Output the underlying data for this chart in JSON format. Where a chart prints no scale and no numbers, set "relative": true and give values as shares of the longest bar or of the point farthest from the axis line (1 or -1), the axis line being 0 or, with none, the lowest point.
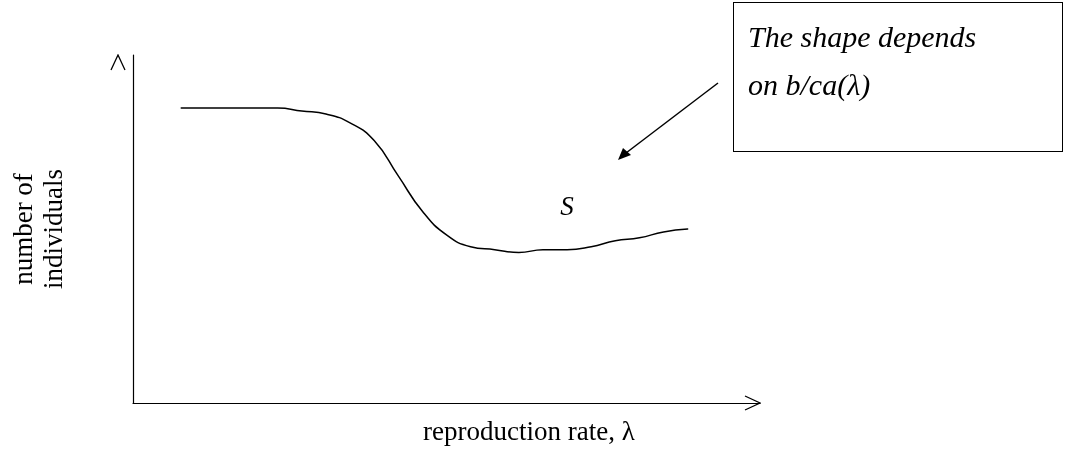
{
  "chart_data": {
    "type": "line",
    "relative": true,
    "xlabel": "reproduction rate, λ",
    "ylabel": "number of\nindividuals",
    "categories": [
      null,
      null,
      null,
      null,
      null,
      null,
      null,
      null,
      null,
      null,
      null,
      null,
      null,
      null,
      null,
      null,
      null,
      null,
      null,
      null,
      null,
      null,
      null,
      null,
      null,
      null,
      null
    ],
    "series": [
      {
        "name": "S",
        "color": "#000000",
        "values": [
          null,
          null,
          1.0,
          1.0,
          1.0,
          1.0,
          1.0,
          0.99,
          0.98,
          0.95,
          0.89,
          0.77,
          0.65,
          0.57,
          0.53,
          0.52,
          0.51,
          0.52,
          0.52,
          0.53,
          0.55,
          0.56,
          0.58,
          0.59,
          null,
          null,
          null
        ]
      }
    ],
    "annotations": [
      "The shape depends on b/ca(λ)"
    ],
    "grid": false,
    "legend": false,
    "marker": "none",
    "line_style": "solid"
  }
}
